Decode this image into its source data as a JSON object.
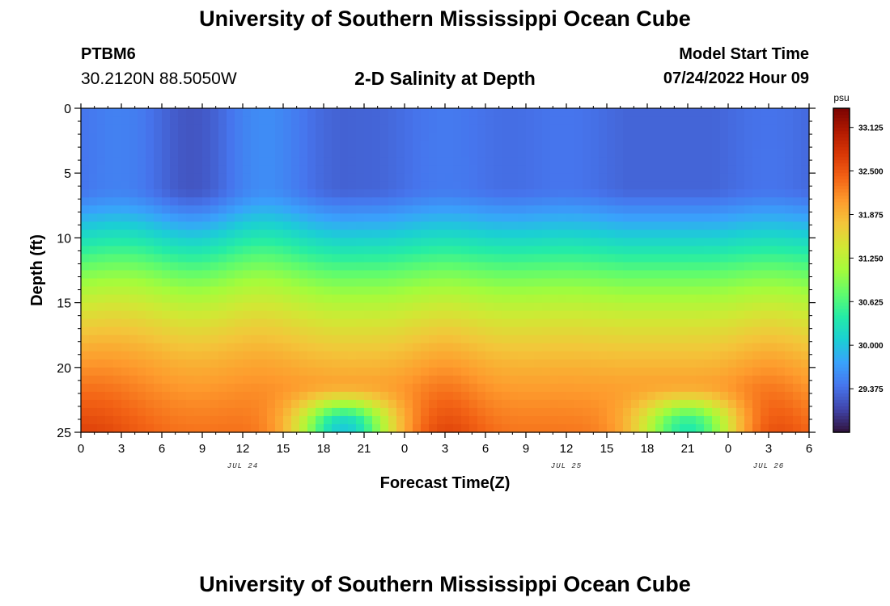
{
  "header": {
    "title": "University of Southern Mississippi Ocean Cube",
    "station": "PTBM6",
    "coords": "30.2120N  88.5050W",
    "plot_title": "2-D Salinity at Depth",
    "model_start_label": "Model Start Time",
    "model_start_value": "07/24/2022 Hour 09"
  },
  "footer": {
    "title": "University of Southern Mississippi Ocean Cube"
  },
  "chart_data": {
    "type": "heatmap",
    "title": "2-D Salinity at Depth",
    "xlabel": "Forecast Time(Z)",
    "ylabel": "Depth (ft)",
    "x_tick_labels": [
      "0",
      "3",
      "6",
      "9",
      "12",
      "15",
      "18",
      "21",
      "0",
      "3",
      "6",
      "9",
      "12",
      "15",
      "18",
      "21",
      "0",
      "3",
      "6"
    ],
    "x_range_hours": [
      0,
      54
    ],
    "day_labels": [
      {
        "label": "JUL 24",
        "hour": 12
      },
      {
        "label": "JUL 25",
        "hour": 36
      },
      {
        "label": "JUL 26",
        "hour": 51
      }
    ],
    "y_tick_labels": [
      "0",
      "5",
      "10",
      "15",
      "20",
      "25"
    ],
    "y_range": [
      0,
      25
    ],
    "y_inverted": true,
    "colorbar": {
      "units": "psu",
      "range": [
        28.75,
        33.4
      ],
      "tick_labels": [
        "33.125",
        "32.500",
        "31.875",
        "31.250",
        "30.625",
        "30.000",
        "29.375"
      ],
      "tick_values": [
        33.125,
        32.5,
        31.875,
        31.25,
        30.625,
        30.0,
        29.375
      ],
      "colors": [
        "#30123b",
        "#4145ab",
        "#4675ed",
        "#39a2fc",
        "#1bcfd4",
        "#24eca6",
        "#61fc6c",
        "#a4fc3b",
        "#d1e834",
        "#f3c63a",
        "#fe9b2d",
        "#f36315",
        "#d93806",
        "#b11901",
        "#7a0402"
      ]
    },
    "profile_description": "hours 0-54 vs depth 0-25 ft; fresher surface layer, saltier bottom water peaking near hours 0, 12, 27, 36, 51",
    "bottom_salinity_peaks_hours": [
      0,
      12,
      27,
      36,
      51
    ],
    "surface_min_hours": [
      4.5,
      12.5
    ],
    "bottom_fresh_pulse_hours": [
      19.5,
      45
    ]
  }
}
